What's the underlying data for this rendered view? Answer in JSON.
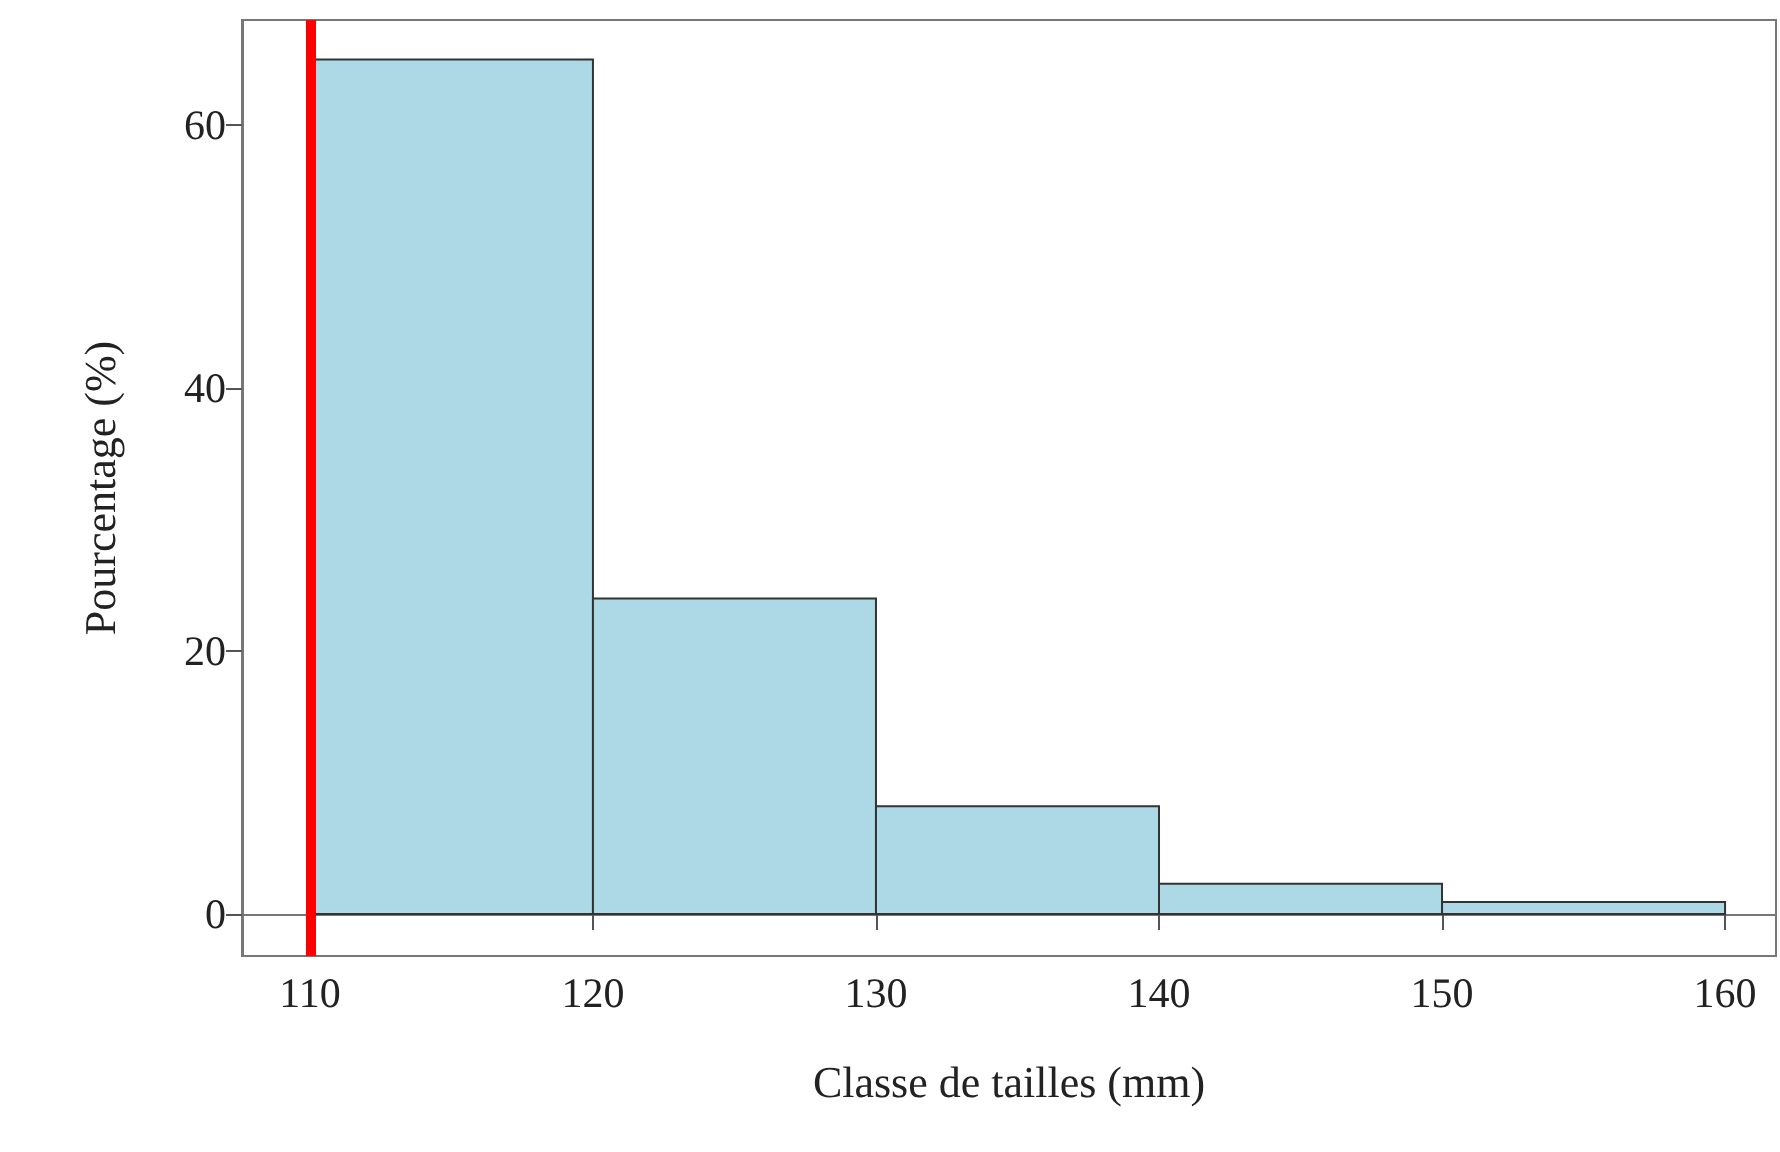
{
  "chart_data": {
    "type": "histogram",
    "xlabel": "Classe de tailles (mm)",
    "ylabel": "Pourcentage (%)",
    "bins": [
      110,
      120,
      130,
      140,
      150,
      160
    ],
    "values": [
      65,
      24,
      8.2,
      2.3,
      0.9
    ],
    "color": "#add8e6",
    "xlim": [
      107.6,
      161.8
    ],
    "xticks": [
      110,
      120,
      130,
      140,
      150,
      160
    ],
    "ylim": [
      -3.2,
      68
    ],
    "yticks": [
      0,
      20,
      40,
      60
    ],
    "ref_lines": [
      {
        "axis": "x",
        "value": 110,
        "color": "#ff0000"
      }
    ],
    "grid": false
  }
}
